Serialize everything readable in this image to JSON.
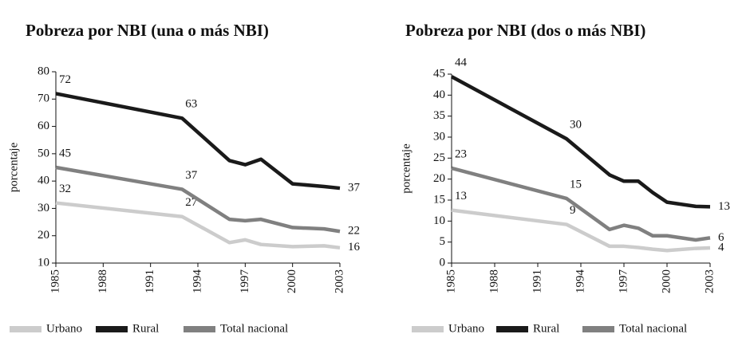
{
  "chart_data": [
    {
      "type": "line",
      "title": "Pobreza por NBI (una o más NBI)",
      "ylabel": "porcentaje",
      "x": [
        1985,
        1993,
        1996,
        1997,
        1998,
        2000,
        2002,
        2003
      ],
      "xlim": [
        1985,
        2003
      ],
      "xticks": [
        1985,
        1988,
        1991,
        1994,
        1997,
        2000,
        2003
      ],
      "ylim": [
        10,
        80
      ],
      "yticks": [
        10,
        20,
        30,
        40,
        50,
        60,
        70,
        80
      ],
      "legend": "bottom",
      "series": [
        {
          "name": "Urbano",
          "color": "#cccccc",
          "values": [
            32,
            27,
            17.5,
            18.5,
            16.8,
            16,
            16.3,
            15.6
          ],
          "value_labels": [
            "32",
            "27",
            null,
            null,
            null,
            null,
            null,
            "16"
          ]
        },
        {
          "name": "Rural",
          "color": "#1a1a1a",
          "values": [
            72,
            63,
            47.5,
            46,
            48,
            39,
            38,
            37.4
          ],
          "value_labels": [
            "72",
            "63",
            null,
            null,
            null,
            null,
            null,
            "37"
          ]
        },
        {
          "name": "Total nacional",
          "color": "#808080",
          "values": [
            45,
            37,
            26,
            25.5,
            26,
            23,
            22.5,
            21.6
          ],
          "value_labels": [
            "45",
            "37",
            null,
            null,
            null,
            null,
            null,
            "22"
          ]
        }
      ]
    },
    {
      "type": "line",
      "title": "Pobreza por NBI (dos o más NBI)",
      "ylabel": "porcentaje",
      "x": [
        1985,
        1993,
        1996,
        1997,
        1998,
        1999,
        2000,
        2002,
        2003
      ],
      "xlim": [
        1985,
        2003
      ],
      "xticks": [
        1985,
        1988,
        1991,
        1994,
        1997,
        2000,
        2003
      ],
      "ylim": [
        0,
        45
      ],
      "yticks": [
        0,
        5,
        10,
        15,
        20,
        25,
        30,
        35,
        40,
        45
      ],
      "legend": "bottom",
      "series": [
        {
          "name": "Urbano",
          "color": "#cccccc",
          "values": [
            12.6,
            9.2,
            4,
            4,
            3.7,
            3.3,
            3,
            3.5,
            3.6
          ],
          "value_labels": [
            "13",
            "9",
            null,
            null,
            null,
            null,
            null,
            null,
            "4"
          ]
        },
        {
          "name": "Rural",
          "color": "#1a1a1a",
          "values": [
            44.4,
            29.6,
            21,
            19.5,
            19.5,
            16.8,
            14.5,
            13.5,
            13.4
          ],
          "value_labels": [
            "44",
            "30",
            null,
            null,
            null,
            null,
            null,
            null,
            "13"
          ]
        },
        {
          "name": "Total nacional",
          "color": "#808080",
          "values": [
            22.6,
            15.4,
            8,
            9,
            8.3,
            6.5,
            6.5,
            5.5,
            6
          ],
          "value_labels": [
            "23",
            "15",
            null,
            null,
            null,
            null,
            null,
            null,
            "6"
          ]
        }
      ]
    }
  ]
}
